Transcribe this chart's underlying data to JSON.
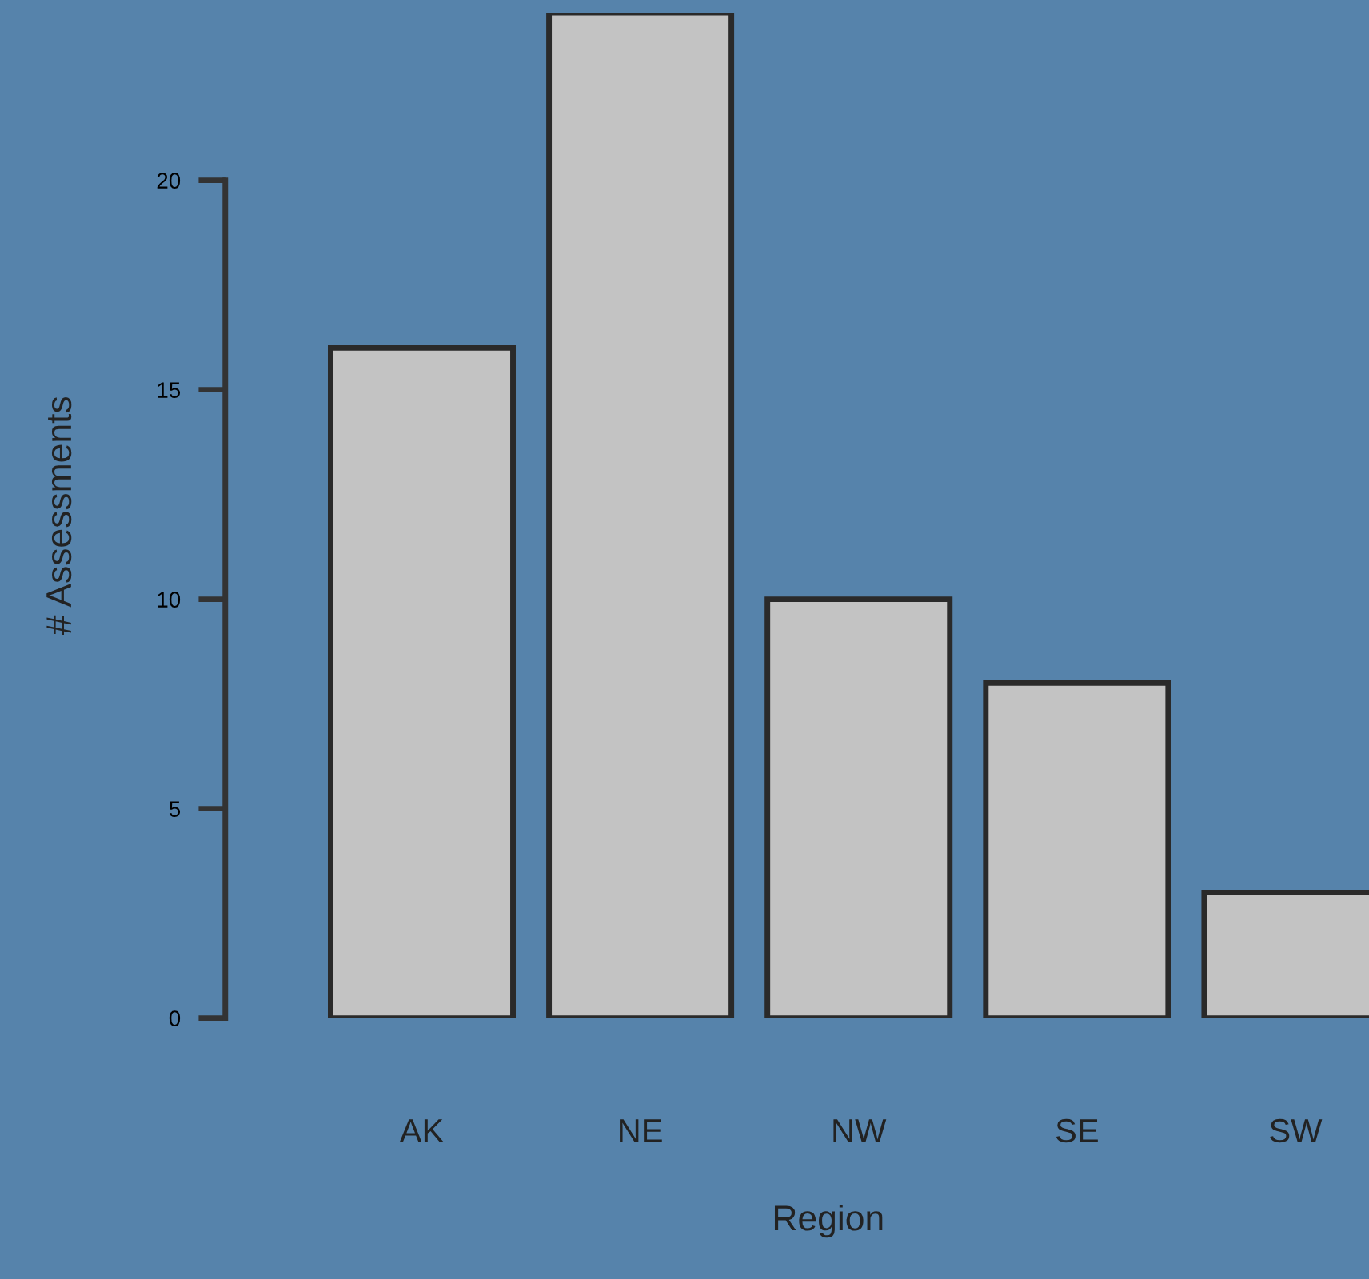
{
  "chart_data": {
    "type": "bar",
    "xlabel": "Region",
    "ylabel": "# Assessments",
    "categories": [
      "AK",
      "NE",
      "NW",
      "SE",
      "SW"
    ],
    "values": [
      16,
      24,
      10,
      8,
      3
    ],
    "color": "#c3c3c3",
    "ylim": [
      0,
      24
    ],
    "yticks": [
      0,
      5,
      10,
      15,
      20
    ],
    "grid": false,
    "legend": false
  }
}
